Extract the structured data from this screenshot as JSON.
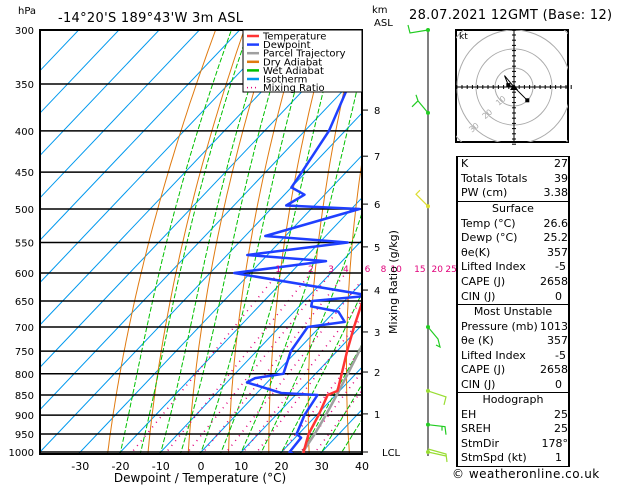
{
  "header": {
    "pressure_unit": "hPa",
    "location": "-14°20'S  189°43'W  3m  ASL",
    "km_label_line1": "km",
    "km_label_line2": "ASL",
    "datetime": "28.07.2021  12GMT  (Base: 12)"
  },
  "legend": [
    {
      "label": "Temperature",
      "color": "#ff3333",
      "style": "solid"
    },
    {
      "label": "Dewpoint",
      "color": "#1f3fff",
      "style": "solid"
    },
    {
      "label": "Parcel Trajectory",
      "color": "#a0a0a0",
      "style": "solid"
    },
    {
      "label": "Dry Adiabat",
      "color": "#e07a10",
      "style": "solid"
    },
    {
      "label": "Wet Adiabat",
      "color": "#00c000",
      "style": "solid"
    },
    {
      "label": "Isotherm",
      "color": "#0099ee",
      "style": "solid"
    },
    {
      "label": "Mixing Ratio",
      "color": "#e0007a",
      "style": "dotted"
    }
  ],
  "chart_data": {
    "type": "line",
    "subtype": "skew-T log-P diagram",
    "title": "-14°20'S  189°43'W  3m  ASL",
    "xlabel": "Dewpoint / Temperature (°C)",
    "ylabel": "hPa",
    "y2label": "Mixing Ratio (g/kg)",
    "xlim": [
      -40,
      40
    ],
    "ylim": [
      1000,
      300
    ],
    "x_ticks": [
      -30,
      -20,
      -10,
      0,
      10,
      20,
      30,
      40
    ],
    "pressure_levels": [
      300,
      350,
      400,
      450,
      500,
      550,
      600,
      650,
      700,
      750,
      800,
      850,
      900,
      950,
      1000
    ],
    "km_ticks": [
      {
        "label": "8",
        "p": 377
      },
      {
        "label": "7",
        "p": 430
      },
      {
        "label": "6",
        "p": 493
      },
      {
        "label": "5",
        "p": 557
      },
      {
        "label": "4",
        "p": 630
      },
      {
        "label": "3",
        "p": 710
      },
      {
        "label": "2",
        "p": 796
      },
      {
        "label": "1",
        "p": 897
      },
      {
        "label": "LCL",
        "p": 1000
      }
    ],
    "mixing_ratio_labels": [
      "1",
      "2",
      "3",
      "4",
      "6",
      "8",
      "10",
      "15",
      "20",
      "25"
    ],
    "series": [
      {
        "name": "Temperature",
        "color": "#ff3333",
        "points": [
          [
            1013,
            26.6
          ],
          [
            1000,
            25.5
          ],
          [
            950,
            22.5
          ],
          [
            900,
            20.5
          ],
          [
            850,
            18.0
          ],
          [
            840,
            19.5
          ],
          [
            800,
            16.5
          ],
          [
            750,
            12.5
          ],
          [
            700,
            8.5
          ],
          [
            650,
            4.5
          ],
          [
            620,
            1.5
          ],
          [
            600,
            -0.5
          ],
          [
            550,
            -5.5
          ],
          [
            500,
            -11.5
          ],
          [
            470,
            -14.0
          ],
          [
            450,
            -16.0
          ],
          [
            420,
            -20.0
          ],
          [
            400,
            -23.5
          ],
          [
            370,
            -28.5
          ],
          [
            350,
            -30.5
          ],
          [
            330,
            -33.5
          ],
          [
            300,
            -38.5
          ]
        ]
      },
      {
        "name": "Dewpoint",
        "color": "#1f3fff",
        "points": [
          [
            1013,
            25.2
          ],
          [
            1000,
            22.0
          ],
          [
            960,
            21.5
          ],
          [
            950,
            19.5
          ],
          [
            900,
            17.0
          ],
          [
            850,
            15.5
          ],
          [
            845,
            6.0
          ],
          [
            820,
            -5.0
          ],
          [
            810,
            -4.0
          ],
          [
            800,
            2.0
          ],
          [
            750,
            -1.5
          ],
          [
            700,
            -3.0
          ],
          [
            690,
            5.0
          ],
          [
            670,
            1.0
          ],
          [
            660,
            -7.0
          ],
          [
            650,
            -8.0
          ],
          [
            640,
            5.0
          ],
          [
            600,
            -34.0
          ],
          [
            580,
            -14.0
          ],
          [
            570,
            -35.0
          ],
          [
            550,
            -13.0
          ],
          [
            540,
            -35.0
          ],
          [
            500,
            -18.0
          ],
          [
            495,
            -37.0
          ],
          [
            480,
            -35.0
          ],
          [
            470,
            -40.0
          ],
          [
            450,
            -41.0
          ],
          [
            400,
            -44.0
          ],
          [
            350,
            -50.0
          ],
          [
            300,
            -56.0
          ]
        ]
      },
      {
        "name": "Parcel Trajectory",
        "color": "#a0a0a0",
        "points": [
          [
            1013,
            26.6
          ],
          [
            1000,
            25.3
          ],
          [
            950,
            24.0
          ],
          [
            900,
            22.3
          ],
          [
            850,
            20.3
          ],
          [
            800,
            18.0
          ],
          [
            750,
            15.5
          ],
          [
            700,
            12.8
          ],
          [
            650,
            9.5
          ],
          [
            600,
            5.8
          ],
          [
            550,
            1.5
          ],
          [
            500,
            -3.5
          ],
          [
            450,
            -9.5
          ],
          [
            400,
            -16.5
          ],
          [
            350,
            -25.5
          ],
          [
            300,
            -36.5
          ]
        ]
      }
    ],
    "wind_barbs": [
      {
        "p": 300,
        "color": "#22cc22"
      },
      {
        "p": 380,
        "color": "#22cc22"
      },
      {
        "p": 496,
        "color": "#dddd33"
      },
      {
        "p": 700,
        "color": "#22cc22"
      },
      {
        "p": 840,
        "color": "#99dd33"
      },
      {
        "p": 925,
        "color": "#22cc22"
      },
      {
        "p": 1000,
        "color": "#99dd33"
      }
    ],
    "grid": true
  },
  "hodograph": {
    "unit_label": "kt",
    "ring_labels": [
      "10",
      "20",
      "30"
    ],
    "points_kt": [
      [
        0,
        0
      ],
      [
        -5,
        6
      ],
      [
        -3,
        1
      ],
      [
        0,
        0
      ],
      [
        7,
        -7
      ]
    ]
  },
  "indices": {
    "general": [
      {
        "label": "K",
        "value": "27"
      },
      {
        "label": "Totals Totals",
        "value": "39"
      },
      {
        "label": "PW (cm)",
        "value": "3.38"
      }
    ],
    "surface": {
      "title": "Surface",
      "rows": [
        {
          "label": "Temp (°C)",
          "value": "26.6"
        },
        {
          "label": "Dewp (°C)",
          "value": "25.2"
        },
        {
          "label": "θe(K)",
          "value": "357"
        },
        {
          "label": "Lifted Index",
          "value": "-5"
        },
        {
          "label": "CAPE (J)",
          "value": "2658"
        },
        {
          "label": "CIN (J)",
          "value": "0"
        }
      ]
    },
    "most_unstable": {
      "title": "Most Unstable",
      "rows": [
        {
          "label": "Pressure (mb)",
          "value": "1013"
        },
        {
          "label": "θe (K)",
          "value": "357"
        },
        {
          "label": "Lifted Index",
          "value": "-5"
        },
        {
          "label": "CAPE (J)",
          "value": "2658"
        },
        {
          "label": "CIN (J)",
          "value": "0"
        }
      ]
    },
    "hodograph": {
      "title": "Hodograph",
      "rows": [
        {
          "label": "EH",
          "value": "25"
        },
        {
          "label": "SREH",
          "value": "25"
        },
        {
          "label": "StmDir",
          "value": "178°"
        },
        {
          "label": "StmSpd (kt)",
          "value": "1"
        }
      ]
    }
  },
  "footer": {
    "copyright": "© weatheronline.co.uk"
  }
}
